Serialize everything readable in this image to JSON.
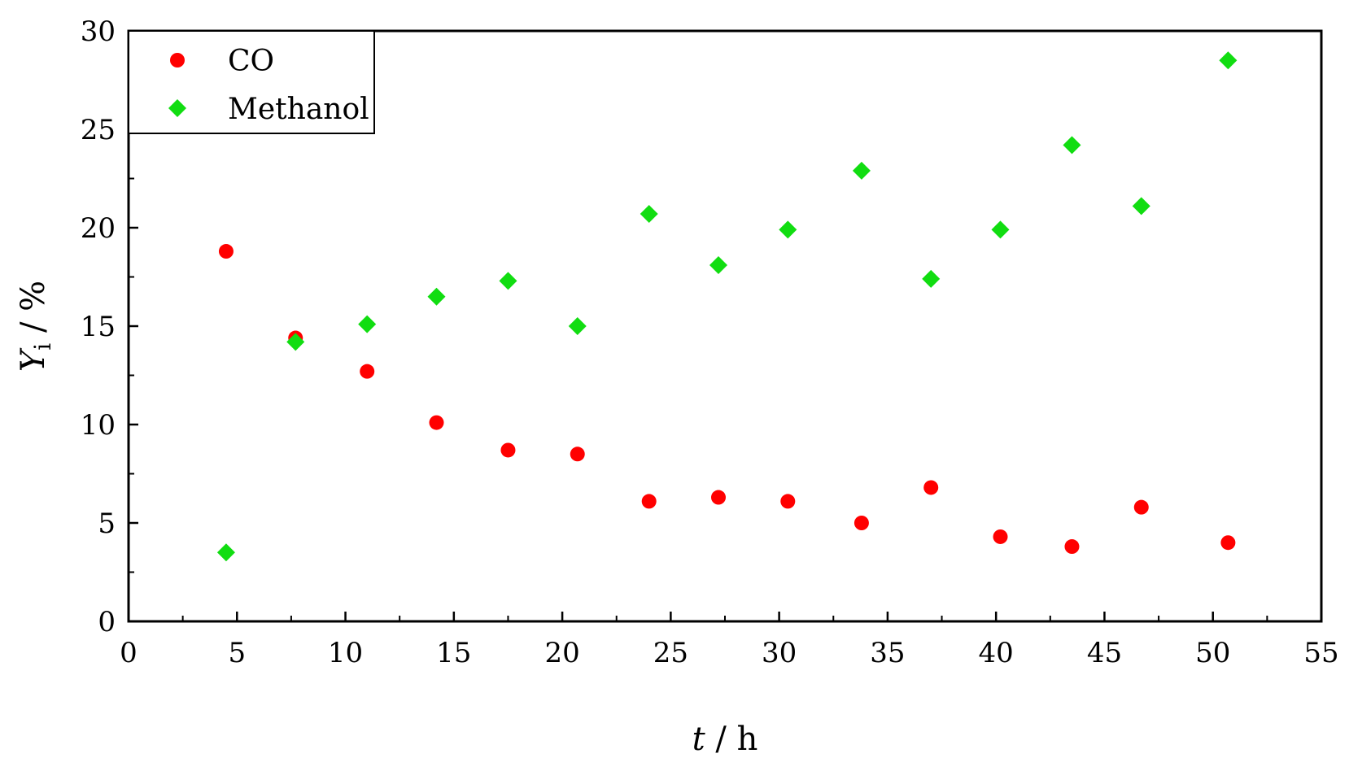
{
  "chart_data": {
    "type": "scatter",
    "title": "",
    "xlabel": {
      "var": "t",
      "unit": " / h"
    },
    "ylabel": {
      "var": "Y",
      "sub": "i",
      "unit": " / %"
    },
    "xlim": [
      0,
      55
    ],
    "ylim": [
      0,
      30
    ],
    "xticks": [
      0,
      5,
      10,
      15,
      20,
      25,
      30,
      35,
      40,
      45,
      50,
      55
    ],
    "yticks": [
      0,
      5,
      10,
      15,
      20,
      25,
      30
    ],
    "grid": false,
    "legend_position": "top-left",
    "series": [
      {
        "name": "CO",
        "marker": "circle",
        "color": "#ff0000",
        "points": [
          [
            4.5,
            18.8
          ],
          [
            7.7,
            14.4
          ],
          [
            11.0,
            12.7
          ],
          [
            14.2,
            10.1
          ],
          [
            17.5,
            8.7
          ],
          [
            20.7,
            8.5
          ],
          [
            24.0,
            6.1
          ],
          [
            27.2,
            6.3
          ],
          [
            30.4,
            6.1
          ],
          [
            33.8,
            5.0
          ],
          [
            37.0,
            6.8
          ],
          [
            40.2,
            4.3
          ],
          [
            43.5,
            3.8
          ],
          [
            46.7,
            5.8
          ],
          [
            50.7,
            4.0
          ]
        ]
      },
      {
        "name": "Methanol",
        "marker": "diamond",
        "color": "#11dd11",
        "points": [
          [
            4.5,
            3.5
          ],
          [
            7.7,
            14.2
          ],
          [
            11.0,
            15.1
          ],
          [
            14.2,
            16.5
          ],
          [
            17.5,
            17.3
          ],
          [
            20.7,
            15.0
          ],
          [
            24.0,
            20.7
          ],
          [
            27.2,
            18.1
          ],
          [
            30.4,
            19.9
          ],
          [
            33.8,
            22.9
          ],
          [
            37.0,
            17.4
          ],
          [
            40.2,
            19.9
          ],
          [
            43.5,
            24.2
          ],
          [
            46.7,
            21.1
          ],
          [
            50.7,
            28.5
          ]
        ]
      }
    ]
  }
}
